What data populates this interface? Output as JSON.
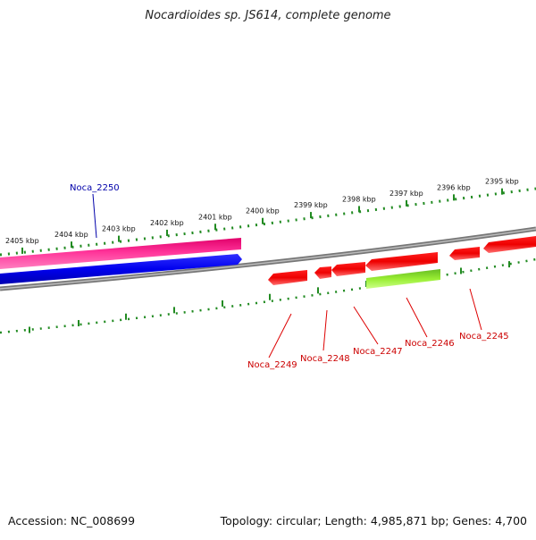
{
  "title": "Nocardioides sp. JS614, complete genome",
  "footer": {
    "accession": "Accession: NC_008699",
    "summary": "Topology: circular; Length: 4,985,871 bp; Genes: 4,700"
  },
  "tick_labels": [
    "2405 kbp",
    "2404 kbp",
    "2403 kbp",
    "2402 kbp",
    "2401 kbp",
    "2400 kbp",
    "2399 kbp",
    "2398 kbp",
    "2397 kbp",
    "2396 kbp",
    "2395 kbp"
  ],
  "genes": [
    {
      "label": "Noca_2250",
      "color": "#1a1aff",
      "strand": "forward-outer"
    },
    {
      "label": "Noca_2249",
      "color": "#ff0000",
      "strand": "reverse"
    },
    {
      "label": "Noca_2248",
      "color": "#ff0000",
      "strand": "reverse"
    },
    {
      "label": "Noca_2247",
      "color": "#ff0000",
      "strand": "reverse"
    },
    {
      "label": "Noca_2246",
      "color": "#ff0000",
      "strand": "reverse"
    },
    {
      "label": "Noca_2245",
      "color": "#ff0000",
      "strand": "reverse"
    }
  ],
  "colors": {
    "forward_cds": "#0000ee",
    "forward_feature": "#ff3399",
    "reverse_cds": "#ff0000",
    "reverse_feature": "#99ee33",
    "backbone": "#888888",
    "ticks": "#228b22"
  }
}
